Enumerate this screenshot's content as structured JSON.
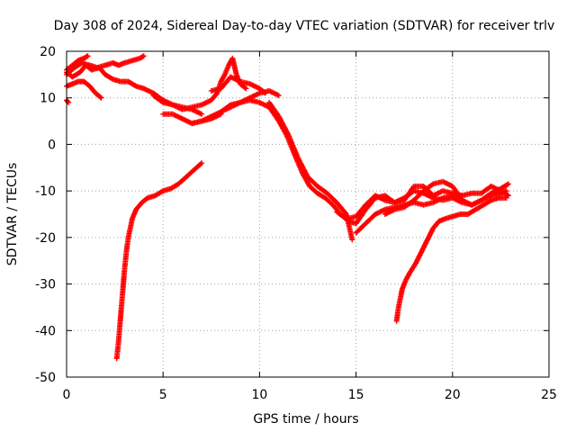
{
  "chart_data": {
    "type": "scatter",
    "title": "Day 308 of 2024, Sidereal Day-to-day VTEC variation (SDTVAR) for receiver trlv",
    "xlabel": "GPS time / hours",
    "ylabel": "SDTVAR / TECUs",
    "xlim": [
      0,
      25
    ],
    "ylim": [
      -50,
      20
    ],
    "xticks": [
      0,
      5,
      10,
      15,
      20,
      25
    ],
    "yticks": [
      -50,
      -40,
      -30,
      -20,
      -10,
      0,
      10,
      20
    ],
    "grid": true,
    "marker": "+",
    "color": "#ff0000",
    "series": [
      {
        "x": [
          0.0,
          0.3,
          0.7,
          1.0,
          1.3,
          1.7,
          2.0,
          2.4,
          2.8,
          3.2,
          3.6,
          4.0,
          4.5,
          5.0,
          5.5,
          6.0,
          6.5,
          7.0
        ],
        "y": [
          15.5,
          14.5,
          15.5,
          17.0,
          16.0,
          16.5,
          15.0,
          14.0,
          13.5,
          13.5,
          12.5,
          12.0,
          11.0,
          9.5,
          8.5,
          8.0,
          7.5,
          6.5
        ]
      },
      {
        "x": [
          0.0,
          0.4,
          0.8,
          1.2,
          1.6,
          2.0,
          2.4,
          2.7,
          3.0,
          3.4,
          3.8,
          4.0
        ],
        "y": [
          15.0,
          16.5,
          17.5,
          17.0,
          16.5,
          17.0,
          17.5,
          17.0,
          17.5,
          18.0,
          18.5,
          19.0
        ]
      },
      {
        "x": [
          0.0,
          0.3,
          0.6,
          0.9,
          1.1
        ],
        "y": [
          16.0,
          17.0,
          18.0,
          18.5,
          19.0
        ]
      },
      {
        "x": [
          0.0,
          0.3,
          0.6,
          0.9,
          1.2,
          1.5,
          1.8
        ],
        "y": [
          12.5,
          13.0,
          13.5,
          13.5,
          12.5,
          11.0,
          10.0
        ]
      },
      {
        "x": [
          0.0,
          0.1
        ],
        "y": [
          9.5,
          9.0
        ]
      },
      {
        "x": [
          2.6,
          2.7,
          2.8,
          2.9,
          3.0,
          3.1,
          3.2,
          3.4,
          3.6,
          3.9,
          4.2,
          4.6,
          5.0,
          5.4,
          5.8,
          6.2,
          6.6,
          7.0
        ],
        "y": [
          -46,
          -42,
          -37,
          -32,
          -27,
          -23,
          -20,
          -16,
          -14,
          -12.5,
          -11.5,
          -11,
          -10,
          -9.5,
          -8.5,
          -7,
          -5.5,
          -4
        ]
      },
      {
        "x": [
          4.5,
          5.0,
          5.5,
          6.0,
          6.5,
          7.0,
          7.5,
          7.8,
          8.0,
          8.2,
          8.4,
          8.6,
          8.8,
          9.0,
          9.3
        ],
        "y": [
          10.5,
          9.0,
          8.5,
          7.5,
          8.0,
          8.5,
          9.5,
          11.0,
          13.5,
          15.0,
          17.0,
          18.5,
          15.0,
          13.0,
          12.0
        ]
      },
      {
        "x": [
          6.5,
          7.0,
          7.5,
          8.0,
          8.5,
          9.0,
          9.5,
          10.0,
          10.5,
          11.0
        ],
        "y": [
          4.5,
          5.0,
          6.0,
          7.0,
          8.5,
          9.0,
          10.0,
          11.0,
          11.5,
          10.5
        ]
      },
      {
        "x": [
          7.5,
          8.0,
          8.5,
          9.0,
          9.5,
          10.0,
          10.3
        ],
        "y": [
          11.5,
          12.0,
          14.5,
          13.5,
          13.0,
          12.0,
          11.0
        ]
      },
      {
        "x": [
          5.0,
          5.5,
          6.0,
          6.5,
          7.0,
          7.5,
          8.0
        ],
        "y": [
          6.5,
          6.5,
          5.5,
          4.5,
          5.0,
          5.5,
          6.5
        ]
      },
      {
        "x": [
          8.0,
          8.5,
          9.0,
          9.5,
          10.0,
          10.5,
          11.0,
          11.4,
          11.8,
          12.2,
          12.6,
          13.0,
          13.4,
          13.8,
          14.2,
          14.6,
          15.0
        ],
        "y": [
          7.0,
          8.0,
          9.0,
          9.5,
          9.0,
          8.0,
          5.0,
          2.0,
          -2.0,
          -6.0,
          -9.0,
          -10.5,
          -11.5,
          -13.0,
          -15.0,
          -16.5,
          -17.0
        ]
      },
      {
        "x": [
          10.5,
          11.0,
          11.5,
          12.0,
          12.5,
          13.0,
          13.5,
          14.0,
          14.5,
          14.8
        ],
        "y": [
          9.0,
          6.0,
          2.0,
          -3.0,
          -7.0,
          -9.0,
          -10.5,
          -12.5,
          -15.0,
          -20.5
        ]
      },
      {
        "x": [
          14.0,
          14.5,
          15.0,
          15.5,
          16.0,
          16.5,
          17.0,
          17.5,
          18.0,
          18.5,
          19.0,
          19.5,
          20.0,
          20.5,
          21.0,
          21.5,
          22.0,
          22.5,
          22.8
        ],
        "y": [
          -14.5,
          -16.0,
          -15.5,
          -13.0,
          -11.0,
          -12.0,
          -12.5,
          -11.5,
          -10.0,
          -10.5,
          -11.5,
          -12.0,
          -11.5,
          -12.5,
          -13.0,
          -12.0,
          -11.0,
          -10.5,
          -10.0
        ]
      },
      {
        "x": [
          15.0,
          15.5,
          16.0,
          16.5,
          17.0,
          17.5,
          18.0,
          18.5,
          19.0,
          19.5,
          20.0,
          20.5,
          21.0,
          21.5,
          22.0,
          22.5,
          22.9
        ],
        "y": [
          -17.0,
          -14.0,
          -11.5,
          -11.0,
          -12.5,
          -12.0,
          -9.0,
          -9.0,
          -11.0,
          -10.0,
          -10.5,
          -11.0,
          -10.5,
          -10.5,
          -9.0,
          -10.0,
          -11.0
        ]
      },
      {
        "x": [
          16.5,
          17.0,
          17.5,
          18.0,
          18.5,
          19.0,
          19.5,
          20.0,
          20.5,
          21.0,
          21.5,
          22.0,
          22.5,
          22.9
        ],
        "y": [
          -15.0,
          -14.0,
          -13.5,
          -12.0,
          -10.0,
          -8.5,
          -8.0,
          -9.0,
          -12.0,
          -13.0,
          -12.0,
          -10.5,
          -9.5,
          -8.5
        ]
      },
      {
        "x": [
          15.0,
          15.5,
          16.0,
          16.5,
          17.0,
          17.5,
          18.0,
          18.5,
          19.0,
          19.5,
          20.0,
          20.5
        ],
        "y": [
          -19.0,
          -17.0,
          -15.0,
          -14.0,
          -13.5,
          -13.0,
          -12.5,
          -13.0,
          -12.5,
          -11.5,
          -11.0,
          -11.0
        ]
      },
      {
        "x": [
          17.1,
          17.2,
          17.4,
          17.6,
          17.8,
          18.1,
          18.4,
          18.7,
          19.0,
          19.3,
          19.6,
          20.0,
          20.4,
          20.8,
          21.2,
          21.6,
          22.0,
          22.4,
          22.8
        ],
        "y": [
          -38.0,
          -35.0,
          -31.0,
          -29.0,
          -27.5,
          -25.5,
          -23.0,
          -20.5,
          -18.0,
          -16.5,
          -16.0,
          -15.5,
          -15.0,
          -15.0,
          -14.0,
          -13.0,
          -12.0,
          -11.5,
          -11.5
        ]
      }
    ]
  }
}
